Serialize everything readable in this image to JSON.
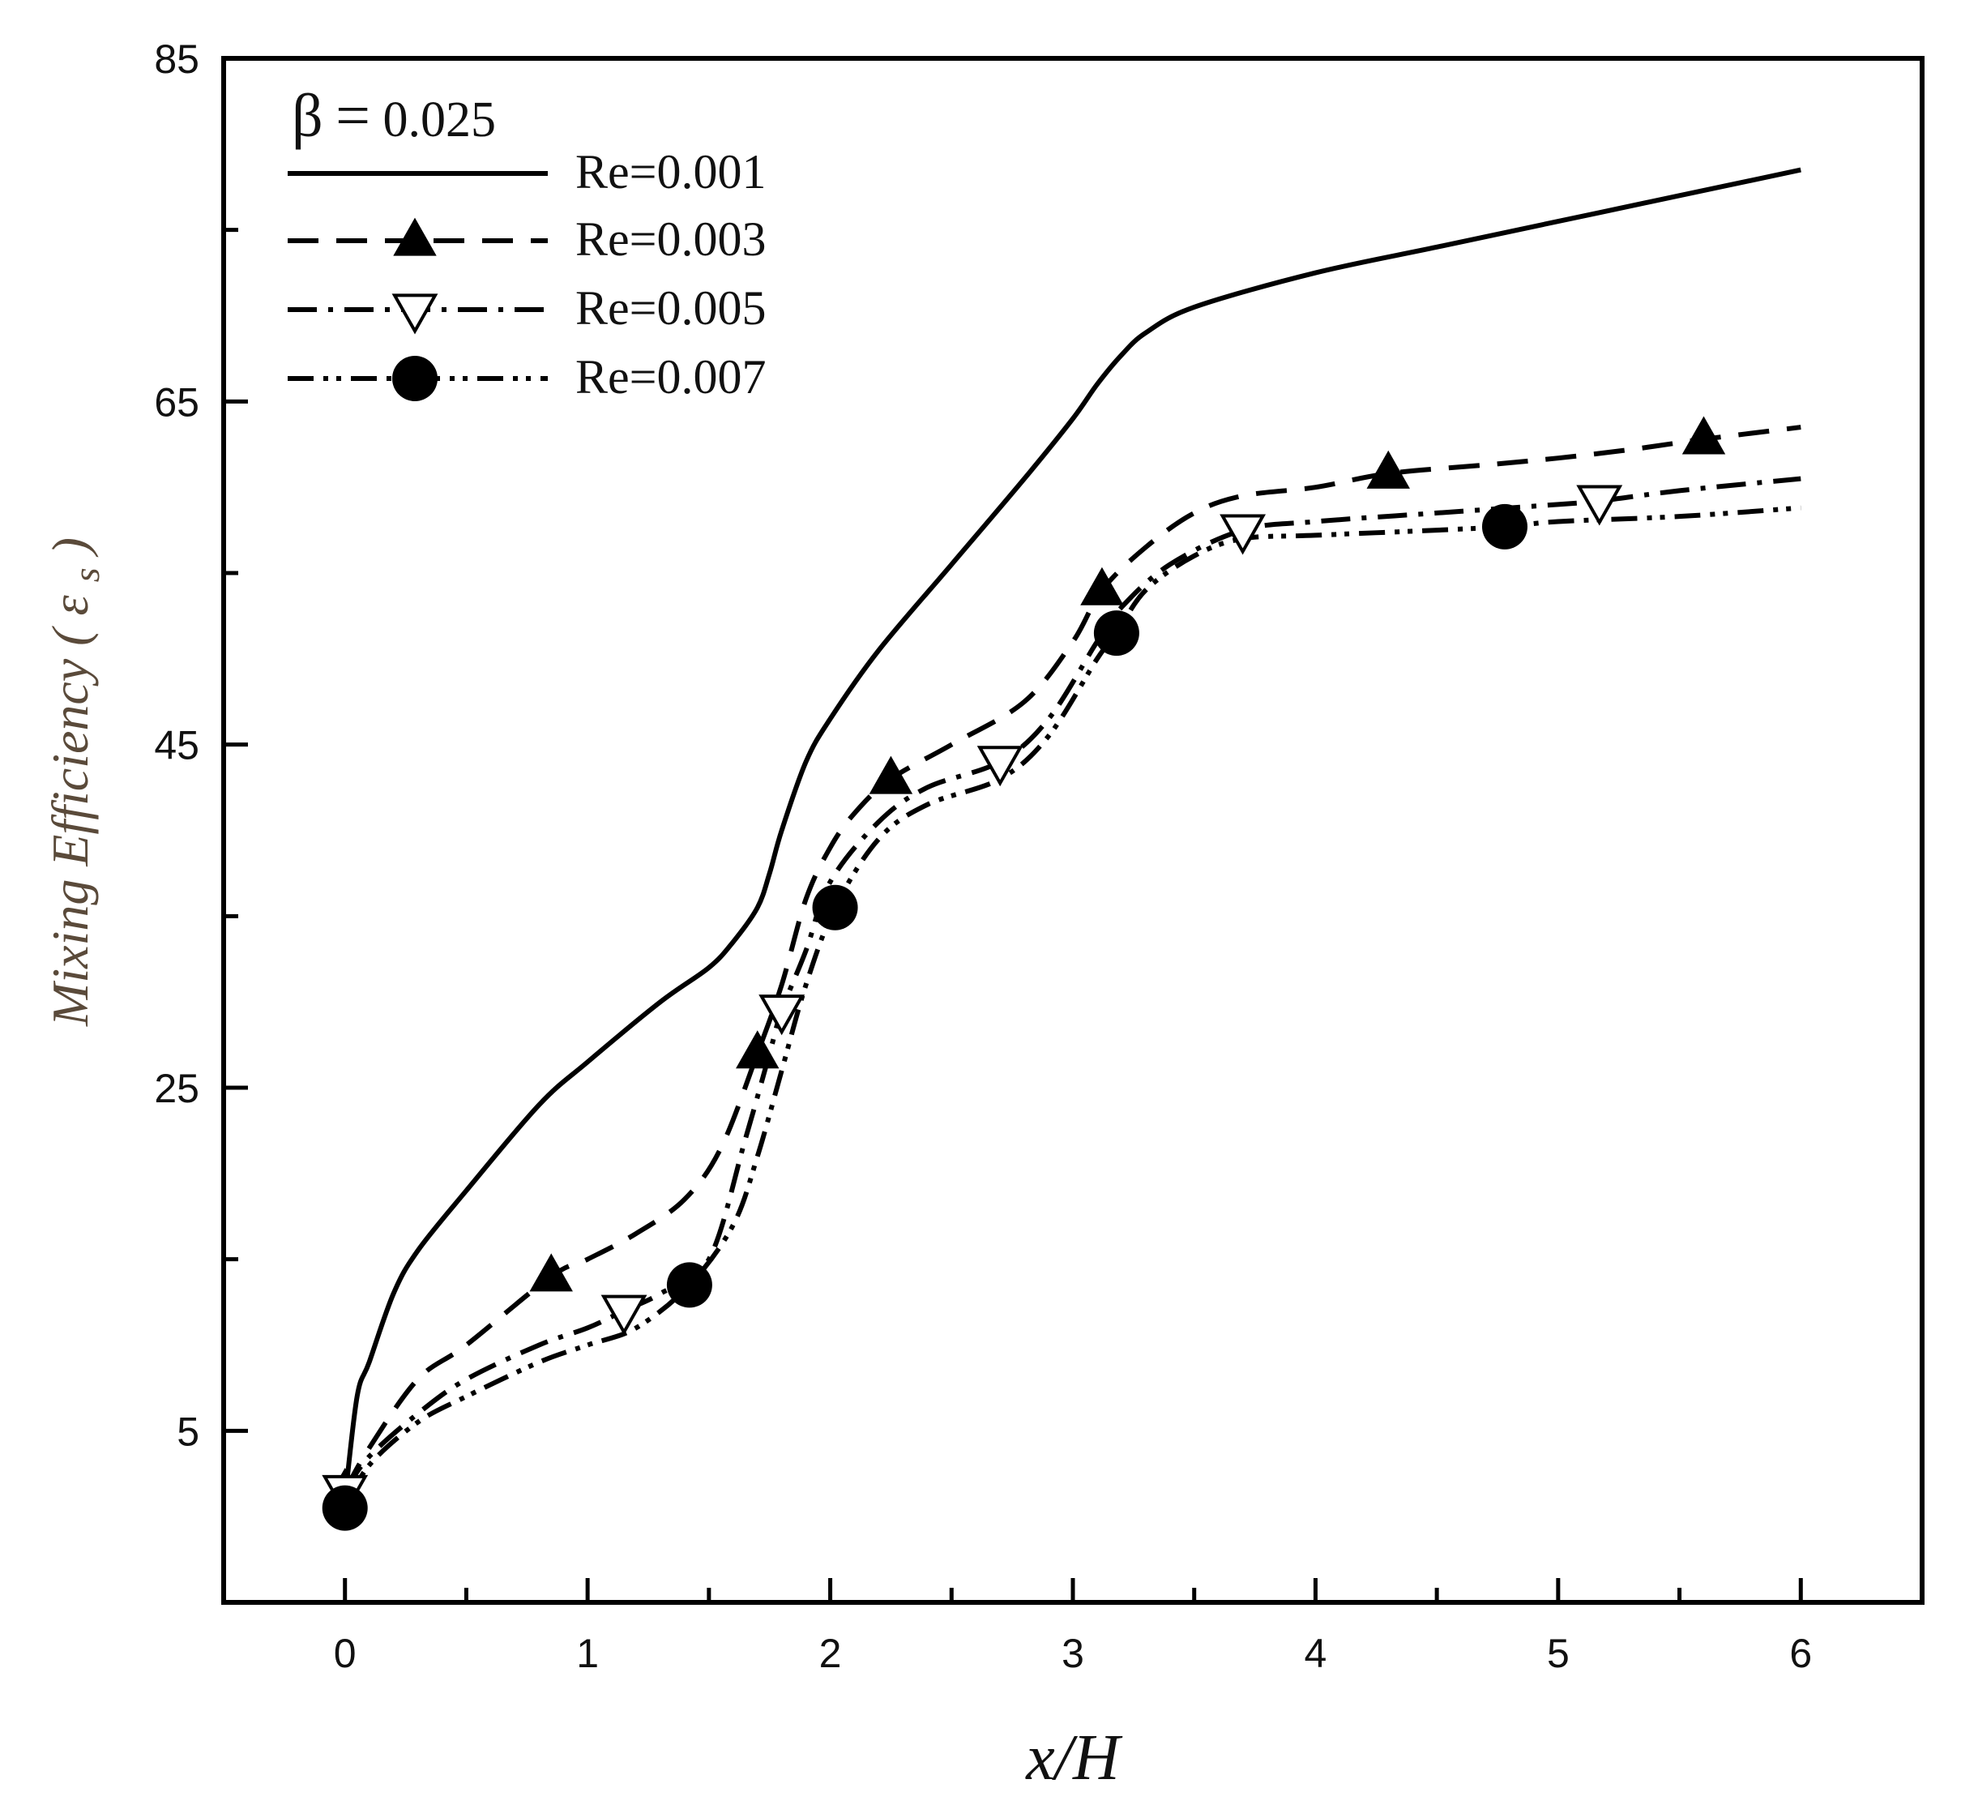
{
  "chart_data": {
    "type": "line",
    "title": "",
    "xlabel": "x/H",
    "ylabel": "Mixing Efficiency (ε_s)",
    "ylabel_text": "Mixing Efficiency",
    "ylabel_symbol": "ε",
    "ylabel_subscript": "s",
    "xlim": [
      -0.5,
      6.5
    ],
    "ylim": [
      -5,
      85
    ],
    "xticks": [
      0,
      1,
      2,
      3,
      4,
      5,
      6
    ],
    "yticks": [
      5,
      25,
      45,
      65,
      85
    ],
    "x_tick_labels": [
      "0",
      "1",
      "2",
      "3",
      "4",
      "5",
      "6"
    ],
    "y_tick_labels": [
      "5",
      "25",
      "45",
      "65",
      "85"
    ],
    "y_minor_ticks": [
      15,
      35,
      55,
      75
    ],
    "x_minor_ticks": [
      0.5,
      1.5,
      2.5,
      3.5,
      4.5,
      5.5
    ],
    "grid": false,
    "legend": {
      "position": "top-left",
      "title_symbol": "β",
      "title_eq": "=",
      "title_value": "0.025"
    },
    "series": [
      {
        "name": "Re=0.001",
        "dash": "solid",
        "marker": "none",
        "x": [
          0,
          0.05,
          0.1,
          0.2,
          0.3,
          0.5,
          0.8,
          1.0,
          1.3,
          1.5,
          1.6,
          1.7,
          1.75,
          1.8,
          1.9,
          2.0,
          2.2,
          2.5,
          2.8,
          3.0,
          3.1,
          3.2,
          3.3,
          3.5,
          4.0,
          4.5,
          5.0,
          5.5,
          6.0
        ],
        "y": [
          1,
          7,
          9,
          13,
          15.5,
          19,
          24,
          26.5,
          30,
          32,
          33.5,
          35.5,
          37.5,
          40,
          44,
          46.5,
          50.5,
          55.5,
          60.5,
          64,
          66,
          67.7,
          69,
          70.5,
          72.5,
          74,
          75.5,
          77,
          78.5
        ]
      },
      {
        "name": "Re=0.003",
        "dash": "dashed",
        "marker": "filled-triangle-up",
        "x": [
          0,
          0.1,
          0.3,
          0.5,
          0.85,
          1.0,
          1.2,
          1.4,
          1.55,
          1.7,
          1.8,
          1.9,
          2.0,
          2.1,
          2.25,
          2.5,
          2.8,
          3.0,
          3.12,
          3.3,
          3.5,
          3.7,
          4.0,
          4.3,
          4.7,
          5.0,
          5.3,
          5.6,
          6.0
        ],
        "y": [
          1.5,
          4,
          8,
          10,
          14,
          15,
          16.5,
          18.5,
          21.5,
          27,
          31,
          36,
          39,
          41,
          43,
          45,
          47.5,
          51,
          54,
          56.5,
          58.5,
          59.5,
          60,
          60.8,
          61.3,
          61.7,
          62.2,
          62.8,
          63.5
        ]
      },
      {
        "name": "Re=0.005",
        "dash": "dash-dot",
        "marker": "open-triangle-down",
        "x": [
          0,
          0.1,
          0.3,
          0.5,
          0.8,
          1.0,
          1.15,
          1.3,
          1.5,
          1.65,
          1.75,
          1.8,
          1.9,
          2.0,
          2.2,
          2.4,
          2.7,
          2.9,
          3.1,
          3.2,
          3.4,
          3.7,
          4.0,
          4.5,
          5.0,
          5.17,
          5.5,
          6.0
        ],
        "y": [
          1.5,
          3.5,
          6,
          8,
          10,
          11,
          12,
          13,
          15,
          22,
          27,
          29.5,
          33,
          37,
          40.5,
          42.5,
          44,
          46.5,
          51,
          53,
          55.5,
          57.5,
          58,
          58.5,
          59,
          59.2,
          59.8,
          60.5
        ]
      },
      {
        "name": "Re=0.007",
        "dash": "dash-dot-dot",
        "marker": "filled-circle",
        "x": [
          0,
          0.1,
          0.3,
          0.5,
          0.8,
          1.0,
          1.2,
          1.42,
          1.6,
          1.7,
          1.8,
          1.9,
          2.02,
          2.2,
          2.4,
          2.7,
          2.9,
          3.1,
          3.18,
          3.3,
          3.5,
          3.7,
          4.0,
          4.5,
          4.78,
          5.0,
          5.5,
          6.0
        ],
        "y": [
          0.5,
          3,
          5.5,
          7,
          9,
          10,
          11,
          13.5,
          17,
          21,
          26,
          31,
          35.5,
          39.5,
          41.5,
          43,
          45.5,
          50,
          51.5,
          54,
          56,
          57,
          57.2,
          57.5,
          57.7,
          58,
          58.3,
          58.8
        ]
      }
    ],
    "markers": [
      {
        "series": 1,
        "x": [
          0,
          0.85,
          1.7,
          2.25,
          3.12,
          4.3,
          5.6
        ],
        "y": [
          1.5,
          14,
          27,
          43,
          54,
          60.8,
          62.8
        ]
      },
      {
        "series": 2,
        "x": [
          0,
          1.15,
          1.8,
          2.7,
          3.7,
          5.17
        ],
        "y": [
          1.5,
          12,
          29.5,
          44,
          57.5,
          59.2
        ]
      },
      {
        "series": 3,
        "x": [
          0,
          1.42,
          2.02,
          3.18,
          4.78
        ],
        "y": [
          0.5,
          13.5,
          35.5,
          51.5,
          57.7
        ]
      }
    ]
  }
}
